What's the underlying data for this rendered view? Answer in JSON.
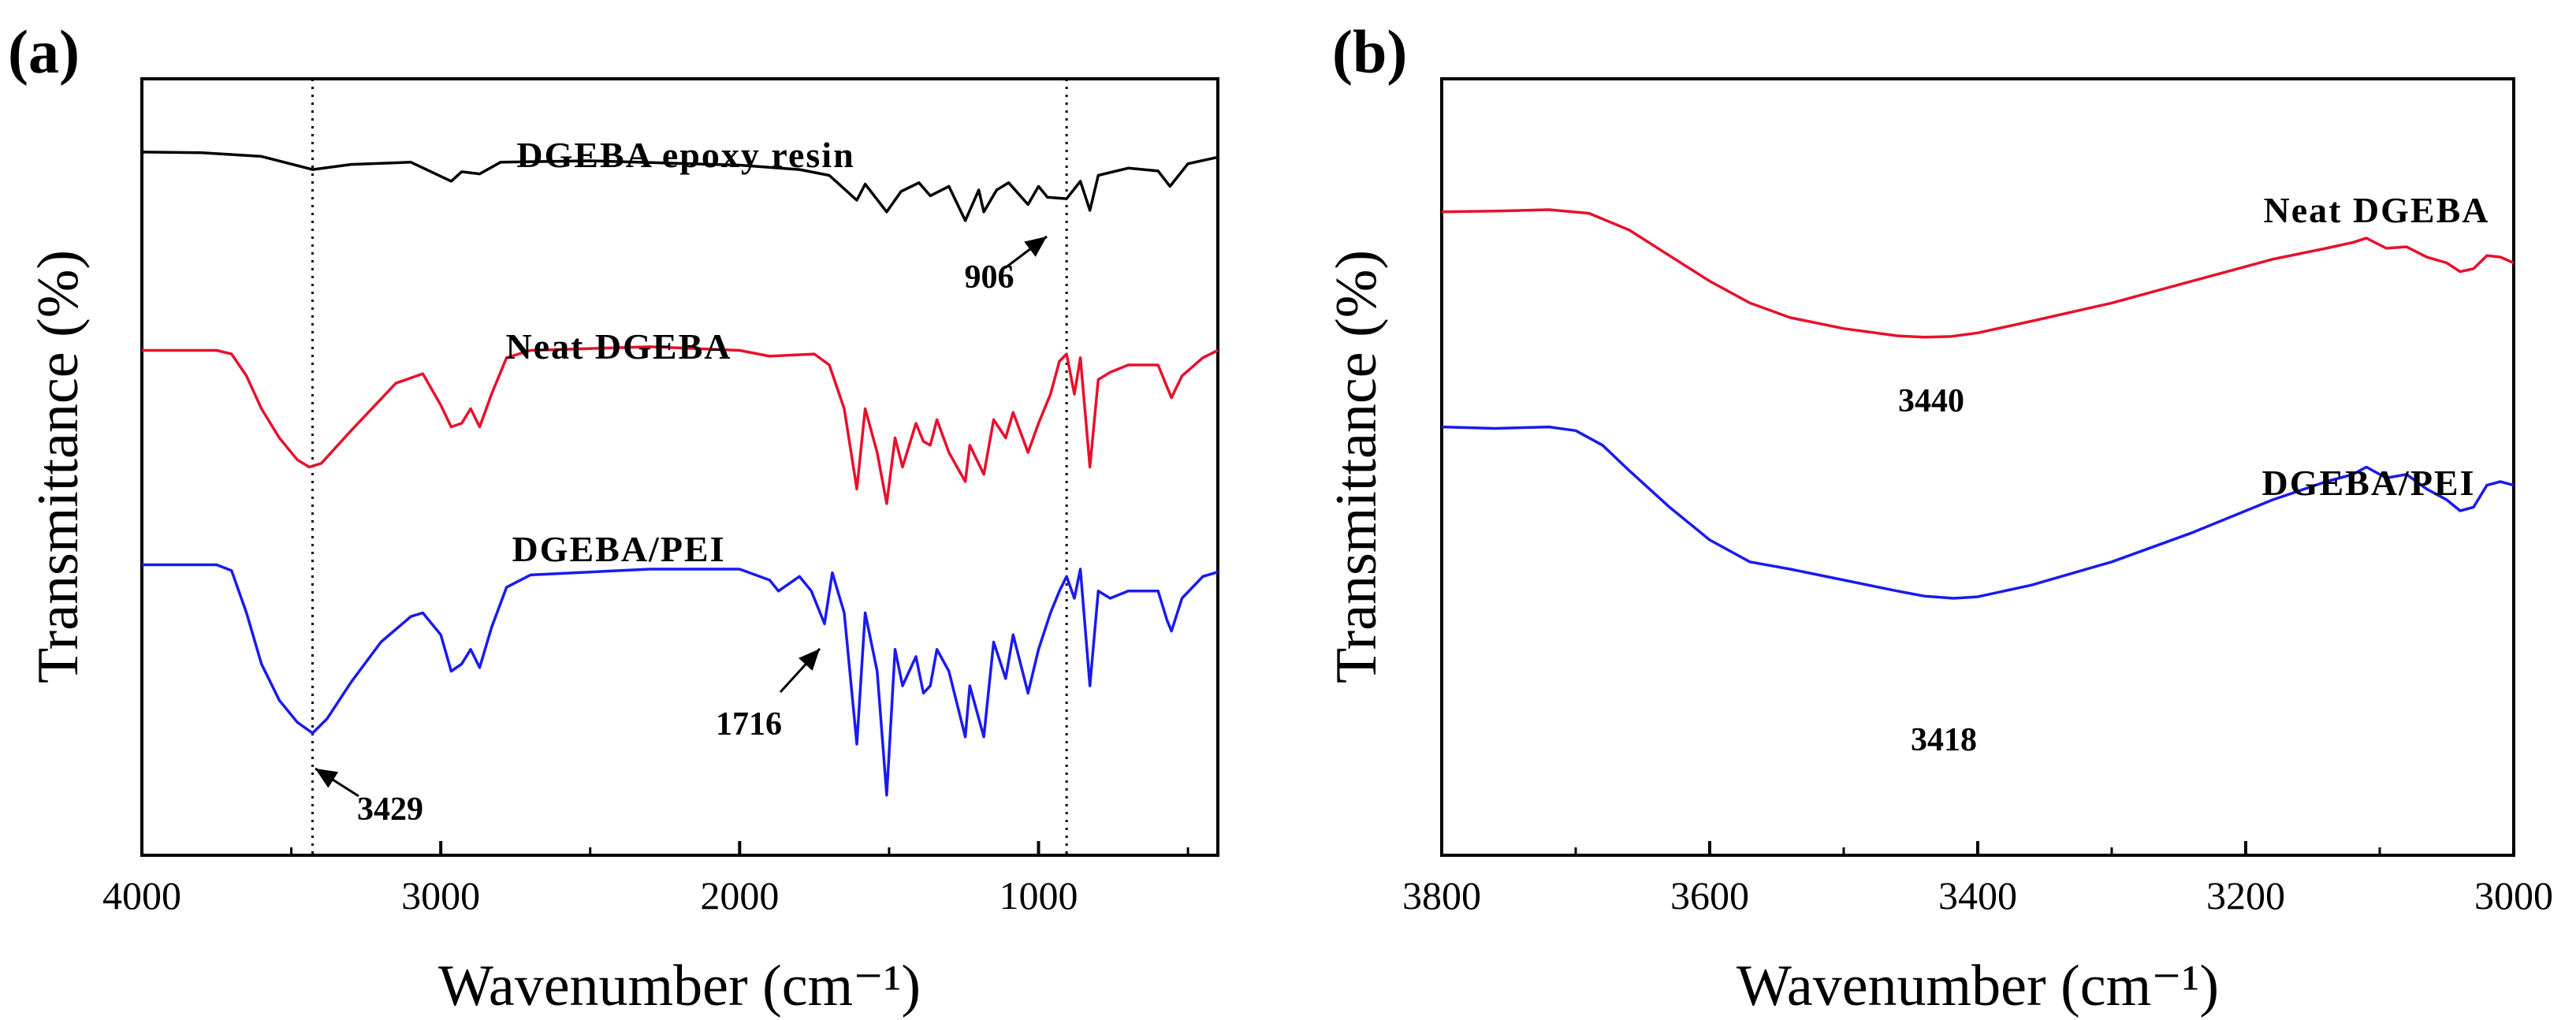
{
  "chart_data": [
    {
      "panel": "(a)",
      "type": "line",
      "xlabel": "Wavenumber (cm⁻¹)",
      "ylabel": "Transmittance (%)",
      "xlim": [
        4000,
        400
      ],
      "x_reversed": true,
      "xticks": [
        4000,
        3000,
        2000,
        1000
      ],
      "xtick_labels": [
        "4000",
        "3000",
        "2000",
        "1000"
      ],
      "ylim": [
        0,
        1
      ],
      "y_ticks_shown": false,
      "grid": false,
      "reference_lines": [
        3429,
        906
      ],
      "series": [
        {
          "name": "DGEBA epoxy resin",
          "color": "#000000",
          "points": [
            [
              4000,
              0.932
            ],
            [
              3800,
              0.931
            ],
            [
              3600,
              0.926
            ],
            [
              3429,
              0.908
            ],
            [
              3300,
              0.915
            ],
            [
              3100,
              0.918
            ],
            [
              2965,
              0.892
            ],
            [
              2930,
              0.905
            ],
            [
              2870,
              0.902
            ],
            [
              2800,
              0.918
            ],
            [
              2500,
              0.92
            ],
            [
              2000,
              0.914
            ],
            [
              1800,
              0.908
            ],
            [
              1700,
              0.9
            ],
            [
              1608,
              0.866
            ],
            [
              1580,
              0.888
            ],
            [
              1508,
              0.85
            ],
            [
              1460,
              0.878
            ],
            [
              1400,
              0.89
            ],
            [
              1362,
              0.872
            ],
            [
              1300,
              0.885
            ],
            [
              1245,
              0.838
            ],
            [
              1200,
              0.88
            ],
            [
              1183,
              0.85
            ],
            [
              1140,
              0.88
            ],
            [
              1100,
              0.89
            ],
            [
              1035,
              0.86
            ],
            [
              1000,
              0.885
            ],
            [
              970,
              0.87
            ],
            [
              906,
              0.868
            ],
            [
              860,
              0.892
            ],
            [
              828,
              0.852
            ],
            [
              800,
              0.9
            ],
            [
              700,
              0.91
            ],
            [
              600,
              0.906
            ],
            [
              560,
              0.885
            ],
            [
              500,
              0.916
            ],
            [
              400,
              0.925
            ]
          ]
        },
        {
          "name": "Neat DGEBA",
          "color": "#e8102b",
          "points": [
            [
              4000,
              0.66
            ],
            [
              3750,
              0.66
            ],
            [
              3700,
              0.655
            ],
            [
              3650,
              0.625
            ],
            [
              3600,
              0.58
            ],
            [
              3540,
              0.54
            ],
            [
              3480,
              0.51
            ],
            [
              3440,
              0.5
            ],
            [
              3400,
              0.505
            ],
            [
              3300,
              0.55
            ],
            [
              3150,
              0.615
            ],
            [
              3060,
              0.628
            ],
            [
              3000,
              0.585
            ],
            [
              2965,
              0.555
            ],
            [
              2930,
              0.56
            ],
            [
              2900,
              0.58
            ],
            [
              2870,
              0.555
            ],
            [
              2830,
              0.6
            ],
            [
              2780,
              0.65
            ],
            [
              2700,
              0.66
            ],
            [
              2300,
              0.665
            ],
            [
              2000,
              0.66
            ],
            [
              1900,
              0.652
            ],
            [
              1750,
              0.655
            ],
            [
              1700,
              0.64
            ],
            [
              1650,
              0.58
            ],
            [
              1608,
              0.47
            ],
            [
              1580,
              0.58
            ],
            [
              1540,
              0.52
            ],
            [
              1508,
              0.45
            ],
            [
              1480,
              0.54
            ],
            [
              1455,
              0.5
            ],
            [
              1410,
              0.56
            ],
            [
              1385,
              0.535
            ],
            [
              1362,
              0.53
            ],
            [
              1340,
              0.565
            ],
            [
              1300,
              0.52
            ],
            [
              1245,
              0.48
            ],
            [
              1230,
              0.53
            ],
            [
              1183,
              0.49
            ],
            [
              1150,
              0.565
            ],
            [
              1110,
              0.54
            ],
            [
              1085,
              0.575
            ],
            [
              1035,
              0.52
            ],
            [
              1000,
              0.56
            ],
            [
              960,
              0.6
            ],
            [
              930,
              0.645
            ],
            [
              906,
              0.655
            ],
            [
              880,
              0.6
            ],
            [
              860,
              0.65
            ],
            [
              828,
              0.5
            ],
            [
              800,
              0.62
            ],
            [
              760,
              0.63
            ],
            [
              700,
              0.64
            ],
            [
              600,
              0.64
            ],
            [
              570,
              0.61
            ],
            [
              555,
              0.595
            ],
            [
              520,
              0.625
            ],
            [
              450,
              0.65
            ],
            [
              400,
              0.66
            ]
          ]
        },
        {
          "name": "DGEBA/PEI",
          "color": "#1a1aef",
          "points": [
            [
              4000,
              0.366
            ],
            [
              3750,
              0.366
            ],
            [
              3700,
              0.358
            ],
            [
              3650,
              0.3
            ],
            [
              3600,
              0.23
            ],
            [
              3540,
              0.18
            ],
            [
              3480,
              0.15
            ],
            [
              3429,
              0.135
            ],
            [
              3380,
              0.155
            ],
            [
              3300,
              0.205
            ],
            [
              3200,
              0.26
            ],
            [
              3100,
              0.295
            ],
            [
              3060,
              0.3
            ],
            [
              3000,
              0.27
            ],
            [
              2965,
              0.22
            ],
            [
              2930,
              0.23
            ],
            [
              2900,
              0.25
            ],
            [
              2870,
              0.225
            ],
            [
              2830,
              0.28
            ],
            [
              2780,
              0.335
            ],
            [
              2700,
              0.352
            ],
            [
              2300,
              0.36
            ],
            [
              2000,
              0.36
            ],
            [
              1900,
              0.345
            ],
            [
              1870,
              0.33
            ],
            [
              1800,
              0.35
            ],
            [
              1760,
              0.33
            ],
            [
              1716,
              0.285
            ],
            [
              1690,
              0.355
            ],
            [
              1650,
              0.3
            ],
            [
              1608,
              0.12
            ],
            [
              1580,
              0.3
            ],
            [
              1540,
              0.22
            ],
            [
              1508,
              0.05
            ],
            [
              1480,
              0.25
            ],
            [
              1455,
              0.2
            ],
            [
              1410,
              0.24
            ],
            [
              1385,
              0.19
            ],
            [
              1362,
              0.2
            ],
            [
              1340,
              0.25
            ],
            [
              1300,
              0.22
            ],
            [
              1245,
              0.13
            ],
            [
              1230,
              0.2
            ],
            [
              1183,
              0.13
            ],
            [
              1150,
              0.26
            ],
            [
              1110,
              0.21
            ],
            [
              1085,
              0.27
            ],
            [
              1035,
              0.19
            ],
            [
              1000,
              0.25
            ],
            [
              960,
              0.3
            ],
            [
              930,
              0.33
            ],
            [
              906,
              0.35
            ],
            [
              880,
              0.32
            ],
            [
              860,
              0.36
            ],
            [
              828,
              0.2
            ],
            [
              800,
              0.33
            ],
            [
              760,
              0.32
            ],
            [
              700,
              0.33
            ],
            [
              600,
              0.33
            ],
            [
              570,
              0.29
            ],
            [
              555,
              0.275
            ],
            [
              520,
              0.32
            ],
            [
              450,
              0.35
            ],
            [
              400,
              0.356
            ]
          ]
        }
      ],
      "annotations": [
        {
          "text": "906",
          "x": 906,
          "y": 0.868
        },
        {
          "text": "1716",
          "x": 1716,
          "y": 0.285
        },
        {
          "text": "3429",
          "x": 3429,
          "y": 0.135
        }
      ]
    },
    {
      "panel": "(b)",
      "type": "line",
      "xlabel": "Wavenumber (cm⁻¹)",
      "ylabel": "Transmittance (%)",
      "xlim": [
        3800,
        3000
      ],
      "x_reversed": true,
      "xticks": [
        3800,
        3600,
        3400,
        3200,
        3000
      ],
      "xtick_labels": [
        "3800",
        "3600",
        "3400",
        "3200",
        "3000"
      ],
      "ylim": [
        0,
        1
      ],
      "y_ticks_shown": false,
      "grid": false,
      "series": [
        {
          "name": "Neat DGEBA",
          "color": "#e8102b",
          "points": [
            [
              3800,
              0.85
            ],
            [
              3760,
              0.851
            ],
            [
              3720,
              0.853
            ],
            [
              3690,
              0.848
            ],
            [
              3660,
              0.825
            ],
            [
              3630,
              0.79
            ],
            [
              3600,
              0.755
            ],
            [
              3570,
              0.725
            ],
            [
              3540,
              0.705
            ],
            [
              3500,
              0.69
            ],
            [
              3460,
              0.68
            ],
            [
              3440,
              0.678
            ],
            [
              3420,
              0.679
            ],
            [
              3400,
              0.684
            ],
            [
              3360,
              0.7
            ],
            [
              3300,
              0.725
            ],
            [
              3240,
              0.755
            ],
            [
              3180,
              0.785
            ],
            [
              3140,
              0.8
            ],
            [
              3120,
              0.808
            ],
            [
              3110,
              0.814
            ],
            [
              3095,
              0.8
            ],
            [
              3080,
              0.802
            ],
            [
              3065,
              0.788
            ],
            [
              3050,
              0.78
            ],
            [
              3040,
              0.768
            ],
            [
              3030,
              0.772
            ],
            [
              3020,
              0.79
            ],
            [
              3010,
              0.788
            ],
            [
              3000,
              0.78
            ]
          ]
        },
        {
          "name": "DGEBA/PEI",
          "color": "#1a1aef",
          "points": [
            [
              3800,
              0.555
            ],
            [
              3760,
              0.553
            ],
            [
              3720,
              0.555
            ],
            [
              3700,
              0.55
            ],
            [
              3680,
              0.53
            ],
            [
              3660,
              0.495
            ],
            [
              3630,
              0.445
            ],
            [
              3600,
              0.4
            ],
            [
              3570,
              0.37
            ],
            [
              3540,
              0.36
            ],
            [
              3500,
              0.345
            ],
            [
              3460,
              0.33
            ],
            [
              3440,
              0.323
            ],
            [
              3418,
              0.32
            ],
            [
              3400,
              0.322
            ],
            [
              3360,
              0.338
            ],
            [
              3300,
              0.37
            ],
            [
              3240,
              0.41
            ],
            [
              3180,
              0.455
            ],
            [
              3140,
              0.48
            ],
            [
              3120,
              0.49
            ],
            [
              3110,
              0.5
            ],
            [
              3095,
              0.485
            ],
            [
              3080,
              0.49
            ],
            [
              3065,
              0.47
            ],
            [
              3050,
              0.455
            ],
            [
              3040,
              0.44
            ],
            [
              3030,
              0.445
            ],
            [
              3020,
              0.475
            ],
            [
              3010,
              0.48
            ],
            [
              3000,
              0.475
            ]
          ]
        }
      ],
      "annotations": [
        {
          "text": "3440",
          "x": 3440,
          "y": 0.678
        },
        {
          "text": "3418",
          "x": 3418,
          "y": 0.32
        }
      ]
    }
  ]
}
